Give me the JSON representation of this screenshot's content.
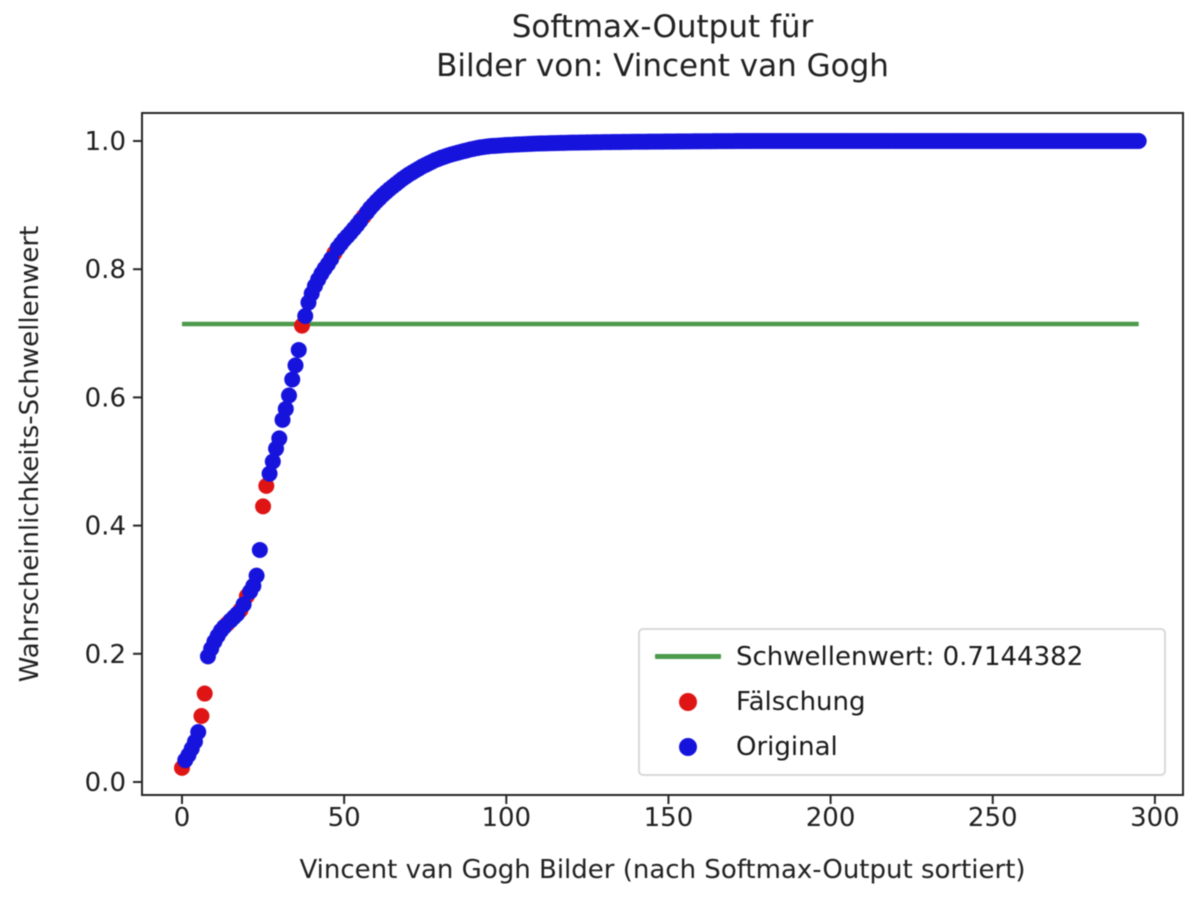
{
  "figure": {
    "title_line1": "Softmax-Output für",
    "title_line2": "Bilder von: Vincent van Gogh",
    "xlabel": "Vincent van Gogh Bilder (nach Softmax-Output sortiert)",
    "ylabel": "Wahrscheinlichkeits-Schwellenwert"
  },
  "legend": {
    "position": "lower right",
    "items": [
      {
        "label": "Schwellenwert: 0.7144382",
        "type": "line",
        "color": "#4c9a4c"
      },
      {
        "label": "Fälschung",
        "type": "dot",
        "color": "#df1414"
      },
      {
        "label": "Original",
        "type": "dot",
        "color": "#1613dd"
      }
    ]
  },
  "colors": {
    "original": "#1613dd",
    "faelschung": "#df1414",
    "threshold": "#4c9a4c",
    "text": "#1f1f1f",
    "spine": "#262626",
    "legend_border": "#d9d9d9"
  },
  "chart_data": {
    "type": "scatter",
    "title": "Softmax-Output für\nBilder von: Vincent van Gogh",
    "xlabel": "Vincent van Gogh Bilder (nach Softmax-Output sortiert)",
    "ylabel": "Wahrscheinlichkeits-Schwellenwert",
    "grid": false,
    "legend_position": "lower right",
    "xlim": [
      -13,
      309
    ],
    "ylim": [
      -0.02,
      1.05
    ],
    "x_ticks": [
      0,
      50,
      100,
      150,
      200,
      250,
      300
    ],
    "x_tick_labels": [
      "0",
      "50",
      "100",
      "150",
      "200",
      "250",
      "300"
    ],
    "y_ticks": [
      0.0,
      0.2,
      0.4,
      0.6,
      0.8,
      1.0
    ],
    "y_tick_labels": [
      "0.0",
      "0.2",
      "0.4",
      "0.6",
      "0.8",
      "1.0"
    ],
    "threshold": {
      "value": 0.7144382,
      "x_start": 0,
      "x_end": 295,
      "label": "Schwellenwert: 0.7144382"
    },
    "n_points": 296,
    "series": [
      {
        "name": "Fälschung",
        "color": "#df1414",
        "points": [
          [
            0,
            0.022
          ],
          [
            6,
            0.103
          ],
          [
            7,
            0.138
          ],
          [
            14,
            0.247
          ],
          [
            18,
            0.268
          ],
          [
            20,
            0.29
          ],
          [
            25,
            0.43
          ],
          [
            26,
            0.462
          ],
          [
            37,
            0.712
          ],
          [
            47,
            0.825
          ],
          [
            56,
            0.882
          ]
        ]
      },
      {
        "name": "Original",
        "color": "#1613dd",
        "count": 285,
        "note": "one point per integer x from 0 to 295 excluding Fälschung x positions; y follows sorted softmax curve interpolated between anchors",
        "curve_anchors": [
          [
            0,
            0.028
          ],
          [
            1,
            0.034
          ],
          [
            2,
            0.042
          ],
          [
            3,
            0.052
          ],
          [
            4,
            0.063
          ],
          [
            5,
            0.078
          ],
          [
            6,
            0.103
          ],
          [
            7,
            0.138
          ],
          [
            8,
            0.196
          ],
          [
            9,
            0.208
          ],
          [
            10,
            0.219
          ],
          [
            11,
            0.228
          ],
          [
            12,
            0.236
          ],
          [
            13,
            0.242
          ],
          [
            14,
            0.247
          ],
          [
            15,
            0.252
          ],
          [
            16,
            0.257
          ],
          [
            17,
            0.262
          ],
          [
            18,
            0.268
          ],
          [
            19,
            0.277
          ],
          [
            20,
            0.29
          ],
          [
            21,
            0.297
          ],
          [
            22,
            0.306
          ],
          [
            23,
            0.322
          ],
          [
            24,
            0.362
          ],
          [
            25,
            0.43
          ],
          [
            26,
            0.462
          ],
          [
            27,
            0.481
          ],
          [
            28,
            0.5
          ],
          [
            29,
            0.52
          ],
          [
            30,
            0.536
          ],
          [
            31,
            0.565
          ],
          [
            32,
            0.582
          ],
          [
            33,
            0.603
          ],
          [
            34,
            0.628
          ],
          [
            35,
            0.65
          ],
          [
            36,
            0.674
          ],
          [
            37,
            0.702
          ],
          [
            38,
            0.727
          ],
          [
            39,
            0.748
          ],
          [
            40,
            0.762
          ],
          [
            41,
            0.774
          ],
          [
            42,
            0.784
          ],
          [
            43,
            0.793
          ],
          [
            44,
            0.801
          ],
          [
            45,
            0.808
          ],
          [
            46,
            0.816
          ],
          [
            47,
            0.825
          ],
          [
            48,
            0.833
          ],
          [
            50,
            0.846
          ],
          [
            52,
            0.857
          ],
          [
            54,
            0.869
          ],
          [
            56,
            0.882
          ],
          [
            58,
            0.895
          ],
          [
            60,
            0.906
          ],
          [
            62,
            0.916
          ],
          [
            64,
            0.925
          ],
          [
            66,
            0.933
          ],
          [
            68,
            0.941
          ],
          [
            70,
            0.948
          ],
          [
            72,
            0.954
          ],
          [
            74,
            0.96
          ],
          [
            76,
            0.965
          ],
          [
            78,
            0.97
          ],
          [
            80,
            0.974
          ],
          [
            83,
            0.979
          ],
          [
            86,
            0.983
          ],
          [
            89,
            0.987
          ],
          [
            92,
            0.99
          ],
          [
            95,
            0.992
          ],
          [
            100,
            0.9937
          ],
          [
            105,
            0.995
          ],
          [
            110,
            0.9961
          ],
          [
            120,
            0.9974
          ],
          [
            130,
            0.9982
          ],
          [
            140,
            0.9988
          ],
          [
            150,
            0.9992
          ],
          [
            160,
            0.9996
          ],
          [
            170,
            0.9999
          ],
          [
            180,
            1.0
          ],
          [
            295,
            1.0
          ]
        ]
      }
    ]
  }
}
